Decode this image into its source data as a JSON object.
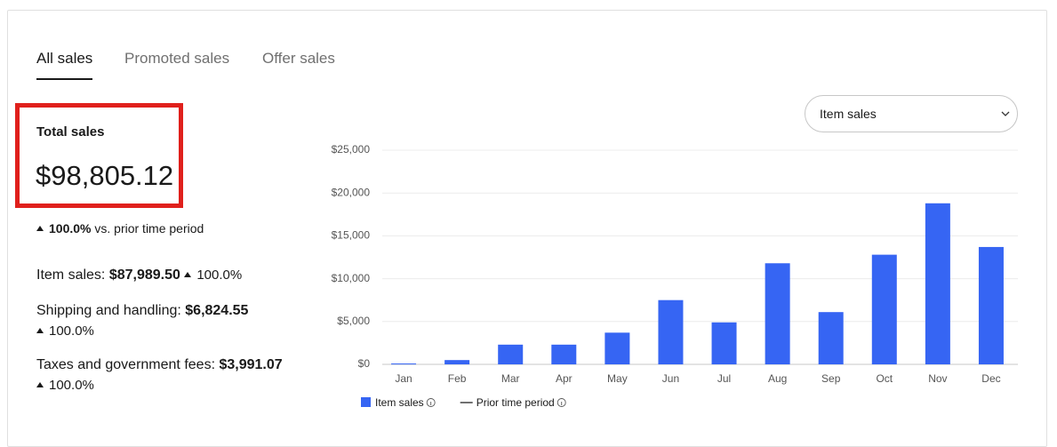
{
  "tabs": [
    {
      "label": "All sales",
      "selected": true
    },
    {
      "label": "Promoted sales",
      "selected": false
    },
    {
      "label": "Offer sales",
      "selected": false
    }
  ],
  "summary": {
    "title": "Total sales",
    "total": "$98,805.12",
    "change": "100.0%",
    "change_text": "vs. prior time period",
    "breakdown": [
      {
        "label": "Item sales:",
        "value": "$87,989.50",
        "change": "100.0%"
      },
      {
        "label": "Shipping and handling:",
        "value": "$6,824.55",
        "change": "100.0%"
      },
      {
        "label": "Taxes and government fees:",
        "value": "$3,991.07",
        "change": "100.0%"
      }
    ]
  },
  "dropdown": {
    "label": "Item sales"
  },
  "chart_data": {
    "type": "bar",
    "categories": [
      "Jan",
      "Feb",
      "Mar",
      "Apr",
      "May",
      "Jun",
      "Jul",
      "Aug",
      "Sep",
      "Oct",
      "Nov",
      "Dec"
    ],
    "series": [
      {
        "name": "Item sales",
        "color": "#3665f3",
        "values": [
          100,
          500,
          2300,
          2300,
          3700,
          7500,
          4900,
          11800,
          6100,
          12800,
          18800,
          13700
        ]
      },
      {
        "name": "Prior time period",
        "color": "#707070",
        "type": "line",
        "values": [
          null,
          null,
          null,
          null,
          null,
          null,
          null,
          null,
          null,
          null,
          null,
          null
        ]
      }
    ],
    "ylim": [
      0,
      25000
    ],
    "yticks": [
      {
        "value": 0,
        "label": "$0"
      },
      {
        "value": 5000,
        "label": "$5,000"
      },
      {
        "value": 10000,
        "label": "$10,000"
      },
      {
        "value": 15000,
        "label": "$15,000"
      },
      {
        "value": 20000,
        "label": "$20,000"
      },
      {
        "value": 25000,
        "label": "$25,000"
      }
    ],
    "grid": true
  }
}
